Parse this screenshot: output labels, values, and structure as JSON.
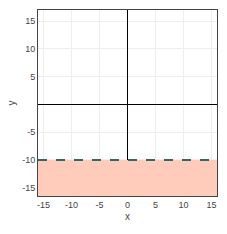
{
  "chart_data": {
    "type": "line",
    "xlabel": "x",
    "ylabel": "y",
    "x": [
      -16,
      16
    ],
    "series": [
      {
        "type": "area",
        "color": "#ffccbb",
        "values": [
          -10,
          -10
        ]
      },
      {
        "type": "line",
        "color": "#336666",
        "line_style": "dashed",
        "values": [
          -10,
          -10
        ]
      }
    ],
    "xlim": [
      -16,
      16
    ],
    "ylim": [
      -16.5,
      17
    ],
    "xticks": [
      -15,
      -10,
      -5,
      0,
      5,
      10,
      15
    ],
    "yticks": [
      -15,
      -10,
      -5,
      5,
      10,
      15
    ],
    "grid": true
  }
}
